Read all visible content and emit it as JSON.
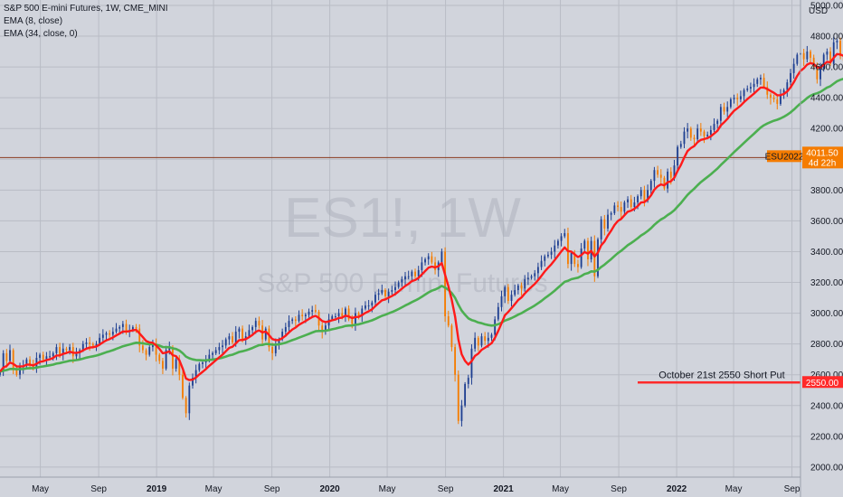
{
  "legend": {
    "symbol_line": "S&P 500 E-mini Futures, 1W, CME_MINI",
    "ema_fast": "EMA (8, close)",
    "ema_slow": "EMA (34, close, 0)"
  },
  "watermark": {
    "ticker": "ES1!, 1W",
    "name": "S&P 500 E-mini Futures"
  },
  "currency": "USD",
  "annotation": {
    "text": "October 21st 2550 Short Put",
    "price_label": "2550.00",
    "value": 2550
  },
  "price_tag": {
    "symbol": "ESU2022",
    "price": "4011.50",
    "countdown": "4d 22h"
  },
  "colors": {
    "background": "#d1d4dc",
    "grid": "#b9bcc5",
    "up": "#1e3f91",
    "down": "#f57c00",
    "ema_fast": "#ff1a1a",
    "ema_slow": "#4caf50",
    "annotation": "#ff2a2a",
    "price_tag": "#f57c00"
  },
  "chart_data": {
    "type": "candlestick",
    "title": "S&P 500 E-mini Futures, 1W, CME_MINI",
    "y_ticks": [
      2000,
      2200,
      2400,
      2600,
      2800,
      3000,
      3200,
      3400,
      3600,
      3800,
      4000,
      4200,
      4400,
      4600,
      4800,
      5000
    ],
    "y_tick_labels": [
      "2000.00",
      "2200.00",
      "2400.00",
      "2600.00",
      "2800.00",
      "3000.00",
      "3200.00",
      "3400.00",
      "3600.00",
      "3800.00",
      "4000.00",
      "4200.00",
      "4400.00",
      "4600.00",
      "4800.00",
      "5000.00"
    ],
    "ylim": [
      1935,
      5035
    ],
    "x_ticks": [
      {
        "label": "May",
        "date": "2018-05-01",
        "year": false
      },
      {
        "label": "Sep",
        "date": "2018-09-01",
        "year": false
      },
      {
        "label": "2019",
        "date": "2019-01-01",
        "year": true
      },
      {
        "label": "May",
        "date": "2019-05-01",
        "year": false
      },
      {
        "label": "Sep",
        "date": "2019-09-01",
        "year": false
      },
      {
        "label": "2020",
        "date": "2020-01-01",
        "year": true
      },
      {
        "label": "May",
        "date": "2020-05-01",
        "year": false
      },
      {
        "label": "Sep",
        "date": "2020-09-01",
        "year": false
      },
      {
        "label": "2021",
        "date": "2021-01-01",
        "year": true
      },
      {
        "label": "May",
        "date": "2021-05-01",
        "year": false
      },
      {
        "label": "Sep",
        "date": "2021-09-01",
        "year": false
      },
      {
        "label": "2022",
        "date": "2022-01-01",
        "year": true
      },
      {
        "label": "May",
        "date": "2022-05-01",
        "year": false
      },
      {
        "label": "Sep",
        "date": "2022-09-01",
        "year": false
      }
    ],
    "xlim": [
      "2018-02-05",
      "2022-09-19"
    ],
    "current_price": 4011.5,
    "close_series": {
      "start_date": "2018-02-05",
      "interval_days": 7,
      "values": [
        2620,
        2740,
        2690,
        2760,
        2640,
        2600,
        2650,
        2660,
        2700,
        2670,
        2640,
        2710,
        2730,
        2700,
        2720,
        2720,
        2740,
        2780,
        2730,
        2770,
        2760,
        2780,
        2720,
        2740,
        2760,
        2800,
        2810,
        2800,
        2790,
        2800,
        2840,
        2860,
        2870,
        2860,
        2880,
        2900,
        2910,
        2930,
        2880,
        2890,
        2910,
        2900,
        2790,
        2760,
        2730,
        2780,
        2800,
        2730,
        2690,
        2640,
        2760,
        2780,
        2640,
        2700,
        2600,
        2450,
        2350,
        2530,
        2580,
        2630,
        2670,
        2680,
        2700,
        2730,
        2740,
        2760,
        2780,
        2790,
        2830,
        2850,
        2810,
        2880,
        2900,
        2830,
        2850,
        2890,
        2910,
        2950,
        2920,
        2830,
        2900,
        2780,
        2740,
        2800,
        2830,
        2880,
        2910,
        2950,
        2960,
        2950,
        2990,
        2980,
        2990,
        3010,
        3020,
        3010,
        2920,
        2880,
        2920,
        2960,
        2980,
        2980,
        3000,
        2980,
        3030,
        2960,
        2930,
        3000,
        2980,
        3030,
        3050,
        3050,
        3070,
        3120,
        3130,
        3150,
        3110,
        3140,
        3150,
        3170,
        3200,
        3220,
        3240,
        3240,
        3270,
        3240,
        3280,
        3330,
        3350,
        3370,
        3330,
        3280,
        3330,
        3400,
        2980,
        2920,
        2780,
        2600,
        2300,
        2400,
        2540,
        2580,
        2770,
        2840,
        2790,
        2850,
        2820,
        2840,
        2860,
        2960,
        3040,
        3110,
        3170,
        3080,
        3120,
        3150,
        3180,
        3160,
        3220,
        3230,
        3240,
        3260,
        3300,
        3340,
        3370,
        3380,
        3400,
        3440,
        3470,
        3500,
        3520,
        3320,
        3390,
        3320,
        3300,
        3420,
        3470,
        3350,
        3470,
        3240,
        3480,
        3610,
        3550,
        3640,
        3650,
        3700,
        3690,
        3660,
        3720,
        3740,
        3690,
        3720,
        3760,
        3800,
        3730,
        3800,
        3860,
        3930,
        3900,
        3880,
        3810,
        3920,
        3880,
        3960,
        4080,
        4100,
        4180,
        4200,
        4140,
        4130,
        4200,
        4180,
        4150,
        4160,
        4190,
        4230,
        4250,
        4340,
        4310,
        4340,
        4390,
        4400,
        4390,
        4410,
        4450,
        4460,
        4470,
        4490,
        4520,
        4530,
        4470,
        4420,
        4400,
        4390,
        4360,
        4420,
        4450,
        4500,
        4560,
        4620,
        4680,
        4690,
        4650,
        4700,
        4660,
        4600,
        4520,
        4590,
        4680,
        4700,
        4620,
        4760,
        4770,
        4670,
        4640,
        4560,
        4390,
        4420,
        4400,
        4390,
        4340,
        4310,
        4460,
        4540,
        4470,
        4380,
        4150,
        4160,
        4140,
        4100,
        3880,
        4000,
        3890,
        3900,
        3910,
        3670,
        3780,
        3900,
        3880,
        3910,
        4010,
        4120,
        4160,
        4270,
        4240,
        4250,
        4100,
        4020,
        4011
      ]
    },
    "ema_series": [
      {
        "name": "EMA (8, close)",
        "period": 8
      },
      {
        "name": "EMA (34, close, 0)",
        "period": 34
      }
    ]
  }
}
